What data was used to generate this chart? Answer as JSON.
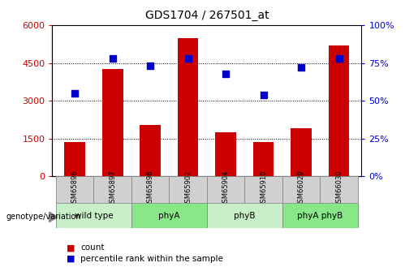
{
  "title": "GDS1704 / 267501_at",
  "samples": [
    "GSM65896",
    "GSM65897",
    "GSM65898",
    "GSM65902",
    "GSM65904",
    "GSM65910",
    "GSM66029",
    "GSM66030"
  ],
  "counts": [
    1350,
    4250,
    2050,
    5500,
    1750,
    1380,
    1900,
    5200
  ],
  "percentiles": [
    55,
    78,
    73,
    78,
    68,
    54,
    72,
    78
  ],
  "groups": [
    {
      "label": "wild type",
      "start": 0,
      "end": 2,
      "color": "#c8f0c8"
    },
    {
      "label": "phyA",
      "start": 2,
      "end": 4,
      "color": "#88e888"
    },
    {
      "label": "phyB",
      "start": 4,
      "end": 6,
      "color": "#c8f0c8"
    },
    {
      "label": "phyA phyB",
      "start": 6,
      "end": 8,
      "color": "#88e888"
    }
  ],
  "ylim_left": [
    0,
    6000
  ],
  "ylim_right": [
    0,
    100
  ],
  "yticks_left": [
    0,
    1500,
    3000,
    4500,
    6000
  ],
  "yticks_right": [
    0,
    25,
    50,
    75,
    100
  ],
  "bar_color": "#cc0000",
  "dot_color": "#0000cc",
  "grid_color": "#000000",
  "tick_color_left": "#cc0000",
  "tick_color_right": "#0000cc",
  "legend_count_label": "count",
  "legend_pct_label": "percentile rank within the sample",
  "genotype_label": "genotype/variation",
  "bar_width": 0.55,
  "sample_box_color": "#d0d0d0",
  "sample_box_edge": "#888888"
}
